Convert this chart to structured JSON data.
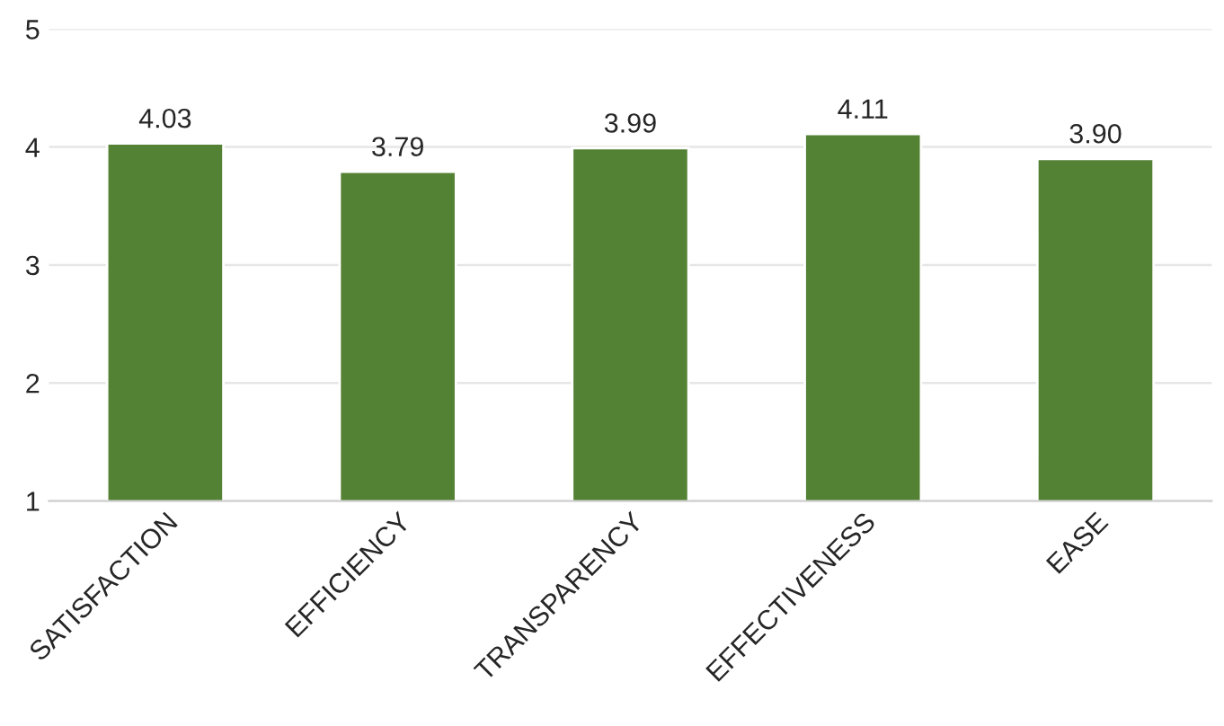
{
  "chart_data": {
    "type": "bar",
    "categories": [
      "SATISFACTION",
      "EFFICIENCY",
      "TRANSPARENCY",
      "EFFECTIVENESS",
      "EASE"
    ],
    "values": [
      4.03,
      3.79,
      3.99,
      4.11,
      3.9
    ],
    "value_labels": [
      "4.03",
      "3.79",
      "3.99",
      "4.11",
      "3.90"
    ],
    "color": "#548235",
    "ylim": [
      1,
      5
    ],
    "yticks": [
      1,
      2,
      3,
      4,
      5
    ],
    "grid": "y"
  }
}
